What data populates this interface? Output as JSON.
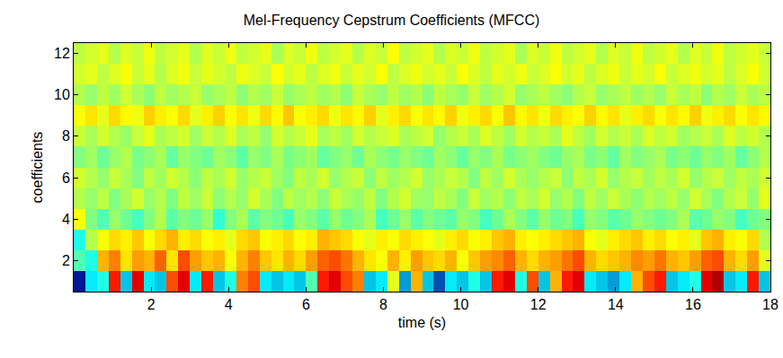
{
  "chart_data": {
    "type": "heatmap",
    "title": "Mel-Frequency Cepstrum Coefficients (MFCC)",
    "x_label": "time (s)",
    "y_label": "coefficients",
    "color": "Jet",
    "xlim": [
      0,
      18
    ],
    "xticks": [
      2,
      4,
      6,
      8,
      10,
      12,
      14,
      16,
      18
    ],
    "ylim": [
      0.5,
      12.5
    ],
    "yticks": [
      2,
      4,
      6,
      8,
      10,
      12
    ],
    "zlim": [
      0,
      1
    ],
    "x": [
      0.15,
      0.45,
      0.75,
      1.05,
      1.35,
      1.65,
      1.95,
      2.25,
      2.55,
      2.85,
      3.15,
      3.45,
      3.75,
      4.05,
      4.35,
      4.65,
      4.95,
      5.25,
      5.55,
      5.85,
      6.15,
      6.45,
      6.75,
      7.05,
      7.35,
      7.65,
      7.95,
      8.25,
      8.55,
      8.85,
      9.15,
      9.45,
      9.75,
      10.05,
      10.35,
      10.65,
      10.95,
      11.25,
      11.55,
      11.85,
      12.15,
      12.45,
      12.75,
      13.05,
      13.35,
      13.65,
      13.95,
      14.25,
      14.55,
      14.85,
      15.15,
      15.45,
      15.75,
      16.05,
      16.35,
      16.65,
      16.95,
      17.25,
      17.55,
      17.85
    ],
    "y": [
      1,
      2,
      3,
      4,
      5,
      6,
      7,
      8,
      9,
      10,
      11,
      12
    ],
    "z": [
      [
        0.05,
        0.35,
        0.4,
        0.85,
        0.3,
        0.9,
        0.35,
        0.3,
        0.8,
        0.9,
        0.35,
        0.85,
        0.3,
        0.4,
        0.75,
        0.8,
        0.35,
        0.3,
        0.35,
        0.3,
        0.45,
        0.85,
        0.9,
        0.8,
        0.75,
        0.3,
        0.35,
        0.6,
        0.25,
        0.7,
        0.3,
        0.15,
        0.35,
        0.3,
        0.4,
        0.3,
        0.85,
        0.9,
        0.4,
        0.8,
        0.3,
        0.7,
        0.85,
        0.9,
        0.35,
        0.3,
        0.25,
        0.35,
        0.7,
        0.8,
        0.85,
        0.3,
        0.35,
        0.4,
        0.9,
        0.95,
        0.3,
        0.35,
        0.85,
        0.3
      ],
      [
        0.45,
        0.4,
        0.7,
        0.75,
        0.65,
        0.72,
        0.7,
        0.78,
        0.65,
        0.8,
        0.72,
        0.68,
        0.7,
        0.62,
        0.7,
        0.75,
        0.68,
        0.65,
        0.7,
        0.66,
        0.72,
        0.78,
        0.8,
        0.76,
        0.7,
        0.65,
        0.62,
        0.7,
        0.64,
        0.72,
        0.68,
        0.66,
        0.7,
        0.62,
        0.68,
        0.72,
        0.74,
        0.78,
        0.7,
        0.66,
        0.7,
        0.72,
        0.76,
        0.8,
        0.7,
        0.66,
        0.68,
        0.7,
        0.74,
        0.72,
        0.76,
        0.7,
        0.68,
        0.72,
        0.78,
        0.8,
        0.7,
        0.66,
        0.72,
        0.6
      ],
      [
        0.4,
        0.55,
        0.62,
        0.66,
        0.64,
        0.68,
        0.62,
        0.66,
        0.7,
        0.64,
        0.66,
        0.62,
        0.64,
        0.6,
        0.66,
        0.68,
        0.62,
        0.64,
        0.66,
        0.62,
        0.64,
        0.7,
        0.68,
        0.66,
        0.62,
        0.6,
        0.64,
        0.62,
        0.66,
        0.64,
        0.62,
        0.6,
        0.64,
        0.66,
        0.62,
        0.64,
        0.68,
        0.7,
        0.64,
        0.62,
        0.64,
        0.66,
        0.68,
        0.7,
        0.62,
        0.6,
        0.64,
        0.66,
        0.68,
        0.64,
        0.66,
        0.62,
        0.64,
        0.6,
        0.68,
        0.7,
        0.64,
        0.62,
        0.66,
        0.55
      ],
      [
        0.62,
        0.5,
        0.45,
        0.52,
        0.48,
        0.44,
        0.5,
        0.55,
        0.46,
        0.5,
        0.48,
        0.52,
        0.42,
        0.5,
        0.54,
        0.46,
        0.5,
        0.48,
        0.44,
        0.52,
        0.5,
        0.46,
        0.52,
        0.48,
        0.5,
        0.54,
        0.44,
        0.48,
        0.52,
        0.46,
        0.5,
        0.48,
        0.46,
        0.52,
        0.5,
        0.44,
        0.48,
        0.54,
        0.5,
        0.46,
        0.52,
        0.48,
        0.5,
        0.44,
        0.52,
        0.5,
        0.46,
        0.48,
        0.52,
        0.5,
        0.48,
        0.5,
        0.54,
        0.46,
        0.48,
        0.52,
        0.5,
        0.44,
        0.48,
        0.5
      ],
      [
        0.55,
        0.52,
        0.56,
        0.5,
        0.54,
        0.58,
        0.52,
        0.55,
        0.5,
        0.56,
        0.53,
        0.57,
        0.51,
        0.55,
        0.52,
        0.58,
        0.54,
        0.5,
        0.56,
        0.53,
        0.55,
        0.51,
        0.57,
        0.54,
        0.52,
        0.56,
        0.5,
        0.55,
        0.58,
        0.53,
        0.52,
        0.56,
        0.54,
        0.5,
        0.57,
        0.53,
        0.55,
        0.51,
        0.56,
        0.54,
        0.58,
        0.52,
        0.55,
        0.5,
        0.56,
        0.53,
        0.57,
        0.54,
        0.51,
        0.55,
        0.53,
        0.56,
        0.52,
        0.58,
        0.54,
        0.5,
        0.55,
        0.57,
        0.52,
        0.6
      ],
      [
        0.58,
        0.55,
        0.52,
        0.57,
        0.54,
        0.5,
        0.56,
        0.53,
        0.58,
        0.55,
        0.51,
        0.56,
        0.54,
        0.58,
        0.52,
        0.55,
        0.57,
        0.53,
        0.5,
        0.56,
        0.54,
        0.58,
        0.52,
        0.55,
        0.57,
        0.51,
        0.56,
        0.53,
        0.55,
        0.58,
        0.52,
        0.54,
        0.57,
        0.55,
        0.5,
        0.56,
        0.53,
        0.58,
        0.54,
        0.52,
        0.55,
        0.57,
        0.51,
        0.56,
        0.54,
        0.58,
        0.52,
        0.55,
        0.57,
        0.53,
        0.56,
        0.54,
        0.58,
        0.52,
        0.55,
        0.57,
        0.53,
        0.56,
        0.54,
        0.58
      ],
      [
        0.5,
        0.53,
        0.48,
        0.52,
        0.55,
        0.49,
        0.51,
        0.54,
        0.47,
        0.52,
        0.5,
        0.48,
        0.53,
        0.51,
        0.46,
        0.52,
        0.5,
        0.54,
        0.49,
        0.51,
        0.53,
        0.47,
        0.5,
        0.52,
        0.48,
        0.54,
        0.51,
        0.49,
        0.52,
        0.5,
        0.48,
        0.53,
        0.51,
        0.47,
        0.52,
        0.5,
        0.54,
        0.49,
        0.51,
        0.53,
        0.5,
        0.48,
        0.52,
        0.54,
        0.49,
        0.51,
        0.47,
        0.53,
        0.5,
        0.52,
        0.54,
        0.49,
        0.51,
        0.48,
        0.52,
        0.5,
        0.53,
        0.47,
        0.51,
        0.55
      ],
      [
        0.57,
        0.54,
        0.58,
        0.55,
        0.52,
        0.57,
        0.6,
        0.54,
        0.56,
        0.58,
        0.53,
        0.57,
        0.55,
        0.59,
        0.54,
        0.56,
        0.52,
        0.58,
        0.55,
        0.57,
        0.6,
        0.54,
        0.56,
        0.53,
        0.58,
        0.55,
        0.57,
        0.59,
        0.54,
        0.56,
        0.58,
        0.52,
        0.55,
        0.57,
        0.54,
        0.59,
        0.56,
        0.53,
        0.58,
        0.55,
        0.57,
        0.54,
        0.6,
        0.56,
        0.53,
        0.58,
        0.55,
        0.57,
        0.54,
        0.59,
        0.56,
        0.58,
        0.53,
        0.55,
        0.57,
        0.54,
        0.59,
        0.56,
        0.58,
        0.55
      ],
      [
        0.62,
        0.65,
        0.6,
        0.66,
        0.63,
        0.61,
        0.67,
        0.64,
        0.62,
        0.66,
        0.6,
        0.64,
        0.67,
        0.62,
        0.65,
        0.61,
        0.66,
        0.63,
        0.68,
        0.62,
        0.64,
        0.66,
        0.61,
        0.65,
        0.63,
        0.67,
        0.6,
        0.64,
        0.66,
        0.62,
        0.65,
        0.63,
        0.67,
        0.61,
        0.64,
        0.66,
        0.62,
        0.68,
        0.63,
        0.65,
        0.61,
        0.66,
        0.64,
        0.62,
        0.67,
        0.63,
        0.65,
        0.6,
        0.64,
        0.66,
        0.62,
        0.65,
        0.63,
        0.67,
        0.61,
        0.64,
        0.66,
        0.62,
        0.65,
        0.63
      ],
      [
        0.55,
        0.52,
        0.56,
        0.53,
        0.58,
        0.54,
        0.51,
        0.56,
        0.53,
        0.55,
        0.57,
        0.52,
        0.54,
        0.56,
        0.51,
        0.55,
        0.53,
        0.57,
        0.52,
        0.54,
        0.56,
        0.53,
        0.55,
        0.51,
        0.57,
        0.54,
        0.52,
        0.56,
        0.53,
        0.55,
        0.51,
        0.56,
        0.54,
        0.52,
        0.57,
        0.53,
        0.55,
        0.58,
        0.52,
        0.54,
        0.56,
        0.53,
        0.51,
        0.55,
        0.57,
        0.52,
        0.54,
        0.56,
        0.53,
        0.55,
        0.52,
        0.57,
        0.54,
        0.56,
        0.51,
        0.55,
        0.53,
        0.57,
        0.54,
        0.56
      ],
      [
        0.58,
        0.6,
        0.56,
        0.59,
        0.62,
        0.57,
        0.6,
        0.55,
        0.59,
        0.61,
        0.57,
        0.6,
        0.58,
        0.56,
        0.61,
        0.59,
        0.57,
        0.62,
        0.58,
        0.6,
        0.56,
        0.59,
        0.61,
        0.57,
        0.6,
        0.58,
        0.62,
        0.56,
        0.59,
        0.61,
        0.58,
        0.6,
        0.57,
        0.62,
        0.59,
        0.56,
        0.6,
        0.58,
        0.61,
        0.57,
        0.59,
        0.62,
        0.58,
        0.6,
        0.56,
        0.59,
        0.61,
        0.57,
        0.6,
        0.58,
        0.62,
        0.57,
        0.59,
        0.61,
        0.58,
        0.6,
        0.56,
        0.59,
        0.62,
        0.58
      ],
      [
        0.56,
        0.58,
        0.6,
        0.55,
        0.59,
        0.57,
        0.61,
        0.56,
        0.58,
        0.6,
        0.55,
        0.59,
        0.57,
        0.61,
        0.56,
        0.58,
        0.6,
        0.54,
        0.59,
        0.57,
        0.61,
        0.56,
        0.58,
        0.6,
        0.55,
        0.59,
        0.57,
        0.62,
        0.56,
        0.58,
        0.6,
        0.55,
        0.59,
        0.57,
        0.61,
        0.56,
        0.58,
        0.6,
        0.54,
        0.59,
        0.57,
        0.61,
        0.56,
        0.58,
        0.6,
        0.55,
        0.59,
        0.57,
        0.61,
        0.56,
        0.58,
        0.6,
        0.55,
        0.59,
        0.57,
        0.61,
        0.56,
        0.58,
        0.6,
        0.57
      ]
    ]
  }
}
